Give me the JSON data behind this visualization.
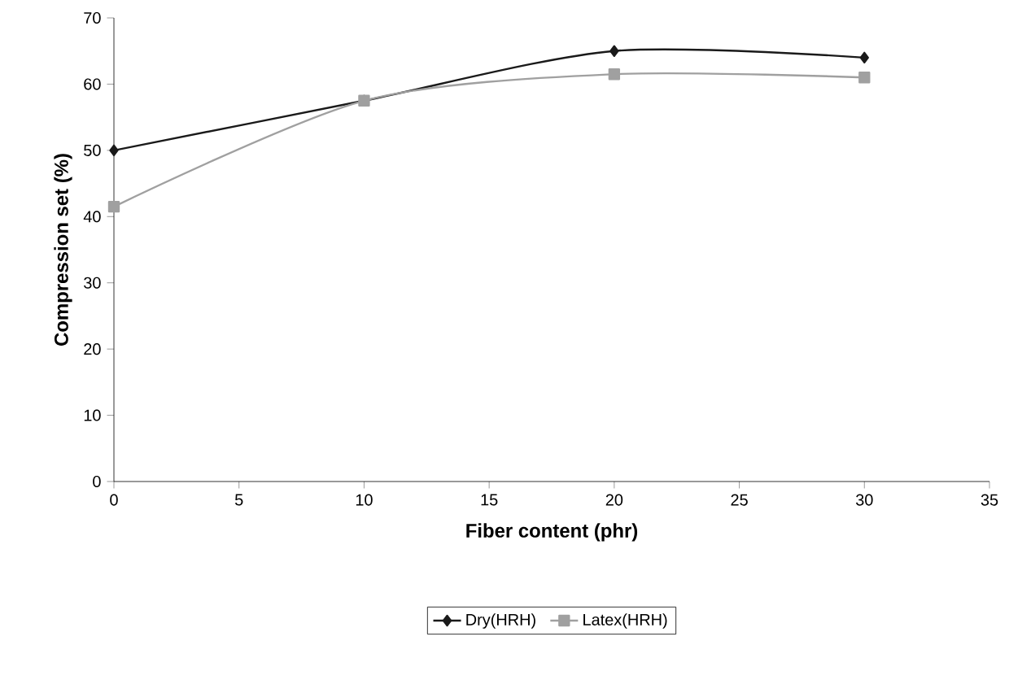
{
  "chart_data": {
    "type": "line",
    "xlabel": "Fiber content (phr)",
    "ylabel": "Compression set (%)",
    "x": [
      0,
      10,
      20,
      30
    ],
    "series": [
      {
        "name": "Dry(HRH)",
        "color": "#1a1a1a",
        "marker": "diamond",
        "values": [
          50,
          57.5,
          65,
          64
        ]
      },
      {
        "name": "Latex(HRH)",
        "color": "#a0a0a0",
        "marker": "square",
        "values": [
          41.5,
          57.5,
          61.5,
          61
        ]
      }
    ],
    "xlim": [
      0,
      35
    ],
    "ylim": [
      0,
      70
    ],
    "xticks": [
      0,
      5,
      10,
      15,
      20,
      25,
      30,
      35
    ],
    "yticks": [
      0,
      10,
      20,
      30,
      40,
      50,
      60,
      70
    ],
    "grid": false,
    "legend": "bottom",
    "line_style": "solid"
  }
}
